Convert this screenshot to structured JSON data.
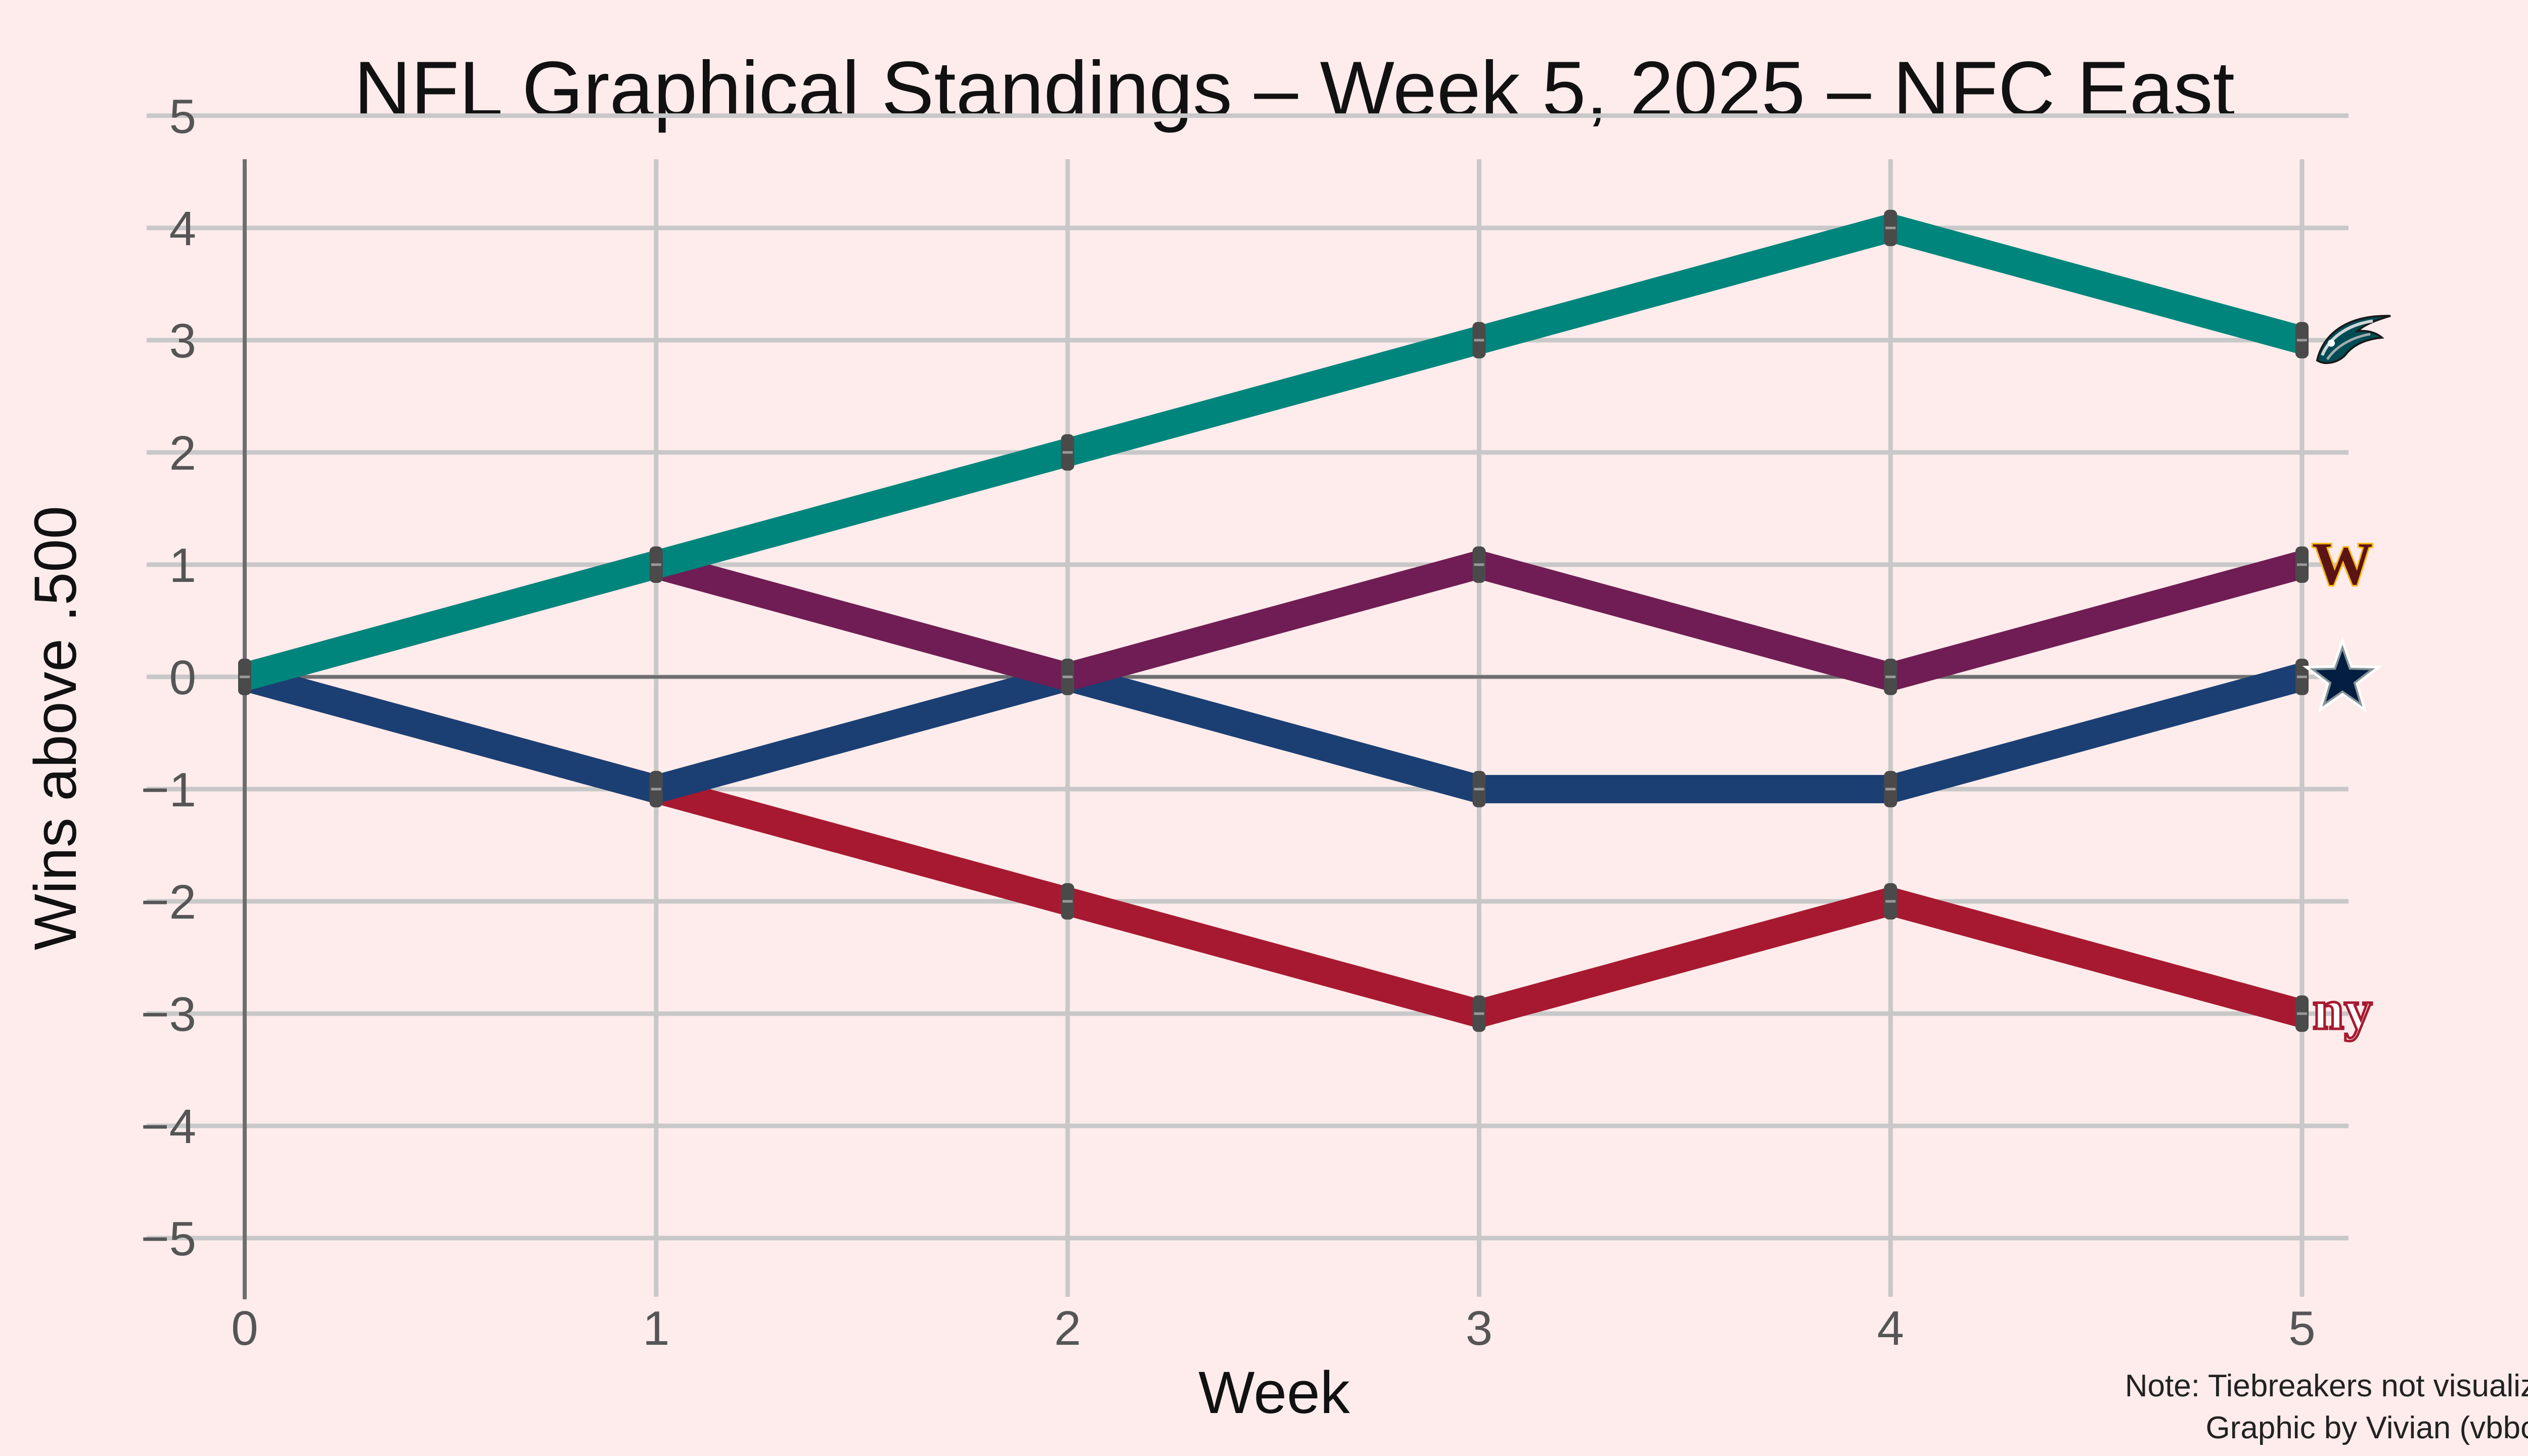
{
  "chart_data": {
    "type": "line",
    "title": "NFL Graphical Standings – Week 5, 2025 – NFC East",
    "xlabel": "Week",
    "ylabel": "Wins above .500",
    "xlim": [
      0,
      5
    ],
    "ylim": [
      -5.5,
      5.4
    ],
    "x": [
      0,
      1,
      2,
      3,
      4,
      5
    ],
    "xticks": [
      "0",
      "1",
      "2",
      "3",
      "4",
      "5"
    ],
    "yticks": [
      -5,
      -4,
      -3,
      -2,
      -1,
      0,
      1,
      2,
      3,
      4,
      5
    ],
    "ytick_labels": [
      "−5",
      "−4",
      "−3",
      "−2",
      "−1",
      "0",
      "1",
      "2",
      "3",
      "4",
      "5"
    ],
    "grid": true,
    "series": [
      {
        "values": [
          0,
          -1,
          -2,
          -3,
          -2,
          -3
        ],
        "color": "#a71930",
        "logo": "giants-logo-icon"
      },
      {
        "values": [
          0,
          -1,
          0,
          -1,
          -1,
          0
        ],
        "color": "#1b3f73",
        "logo": "cowboys-star-icon"
      },
      {
        "values": [
          0,
          1,
          0,
          1,
          0,
          1
        ],
        "color": "#6f1d54",
        "logo": "commanders-w-icon"
      },
      {
        "values": [
          0,
          1,
          2,
          3,
          4,
          3
        ],
        "color": "#00857c",
        "logo": "eagles-head-icon"
      }
    ],
    "notes": [
      "Note: Tiebreakers not visualized",
      "Graphic by Vivian (vbbcla)"
    ]
  },
  "colors": {
    "background": "#fdeceb",
    "grid": "#c8c8c8",
    "axis": "#6e6e6e",
    "marker": "#4a4a4a"
  },
  "logos": {
    "commanders_letter": "W",
    "giants_letters": "ny"
  }
}
